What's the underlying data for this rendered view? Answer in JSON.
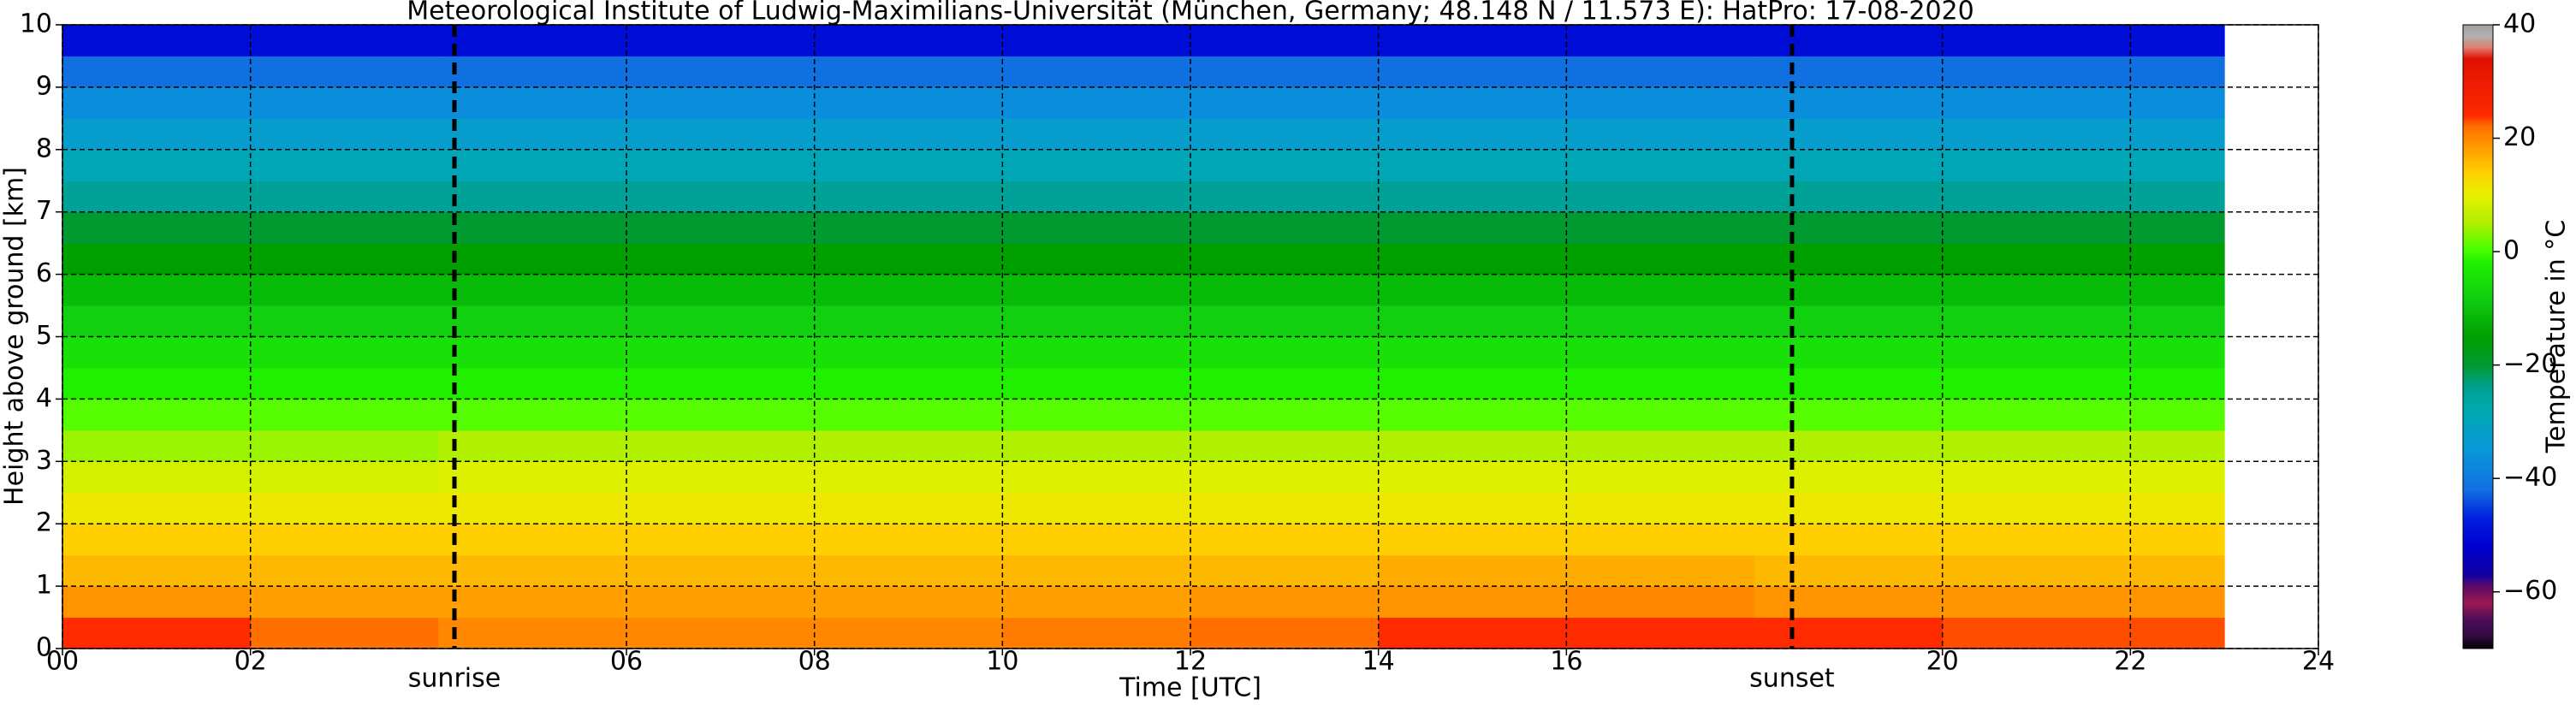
{
  "chart_data": {
    "type": "heatmap",
    "title": "Meteorological Institute of Ludwig-Maximilians-Universität (München, Germany; 48.148 N / 11.573 E):    HatPro: 17-08-2020",
    "xlabel": "Time [UTC]",
    "ylabel": "Height above ground [km]",
    "colorbar_label": "Temperature in °C",
    "xlim": [
      0,
      24
    ],
    "ylim": [
      0,
      10
    ],
    "xticks": [
      {
        "value": 0,
        "label": "00"
      },
      {
        "value": 2,
        "label": "02"
      },
      {
        "value": 6,
        "label": "06"
      },
      {
        "value": 8,
        "label": "08"
      },
      10,
      12,
      14,
      16,
      20,
      22,
      24
    ],
    "yticks": [
      0,
      1,
      2,
      3,
      4,
      5,
      6,
      7,
      8,
      9,
      10
    ],
    "grid": true,
    "events": [
      {
        "x": 4.17,
        "label": "sunrise"
      },
      {
        "x": 18.4,
        "label": "sunset"
      }
    ],
    "x_edges": [
      0,
      2,
      4,
      6,
      8,
      10,
      12,
      14,
      16,
      18,
      20,
      22,
      23
    ],
    "y_edges": [
      0,
      0.5,
      1,
      1.5,
      2,
      2.5,
      3,
      3.5,
      4,
      4.5,
      5,
      5.5,
      6,
      6.5,
      7,
      7.5,
      8,
      8.5,
      9,
      9.5,
      10
    ],
    "z": [
      [
        24,
        22,
        20,
        20,
        20,
        21,
        22,
        24,
        24,
        24,
        23,
        23
      ],
      [
        19,
        18,
        18,
        18,
        18,
        18,
        19,
        19,
        20,
        19,
        19,
        19
      ],
      [
        16,
        16,
        16,
        16,
        16,
        16,
        16,
        17,
        17,
        16,
        16,
        16
      ],
      [
        14,
        14,
        14,
        14,
        14,
        14,
        14,
        14,
        14,
        14,
        14,
        14
      ],
      [
        11,
        11,
        11,
        11,
        11,
        11,
        11,
        11,
        11,
        11,
        11,
        11
      ],
      [
        8,
        8,
        9,
        9,
        9,
        9,
        9,
        9,
        9,
        9,
        9,
        9
      ],
      [
        4,
        4,
        5,
        5,
        5,
        5,
        5,
        5,
        5,
        5,
        5,
        5
      ],
      [
        1,
        1,
        1,
        1,
        1,
        1,
        1,
        1,
        1,
        1,
        1,
        1
      ],
      [
        -2,
        -2,
        -2,
        -2,
        -2,
        -2,
        -2,
        -2,
        -2,
        -2,
        -2,
        -2
      ],
      [
        -5,
        -5,
        -5,
        -5,
        -5,
        -5,
        -5,
        -5,
        -5,
        -5,
        -5,
        -5
      ],
      [
        -8,
        -8,
        -8,
        -8,
        -8,
        -8,
        -8,
        -8,
        -8,
        -8,
        -8,
        -8
      ],
      [
        -11,
        -11,
        -11,
        -11,
        -11,
        -11,
        -11,
        -11,
        -11,
        -11,
        -11,
        -11
      ],
      [
        -15,
        -15,
        -15,
        -15,
        -15,
        -15,
        -15,
        -15,
        -15,
        -15,
        -15,
        -15
      ],
      [
        -20,
        -20,
        -20,
        -20,
        -20,
        -20,
        -20,
        -20,
        -20,
        -20,
        -20,
        -20
      ],
      [
        -25,
        -25,
        -25,
        -25,
        -25,
        -25,
        -25,
        -25,
        -25,
        -25,
        -25,
        -25
      ],
      [
        -29,
        -29,
        -29,
        -29,
        -29,
        -29,
        -29,
        -29,
        -29,
        -29,
        -29,
        -29
      ],
      [
        -33,
        -33,
        -33,
        -33,
        -33,
        -33,
        -33,
        -33,
        -33,
        -33,
        -33,
        -33
      ],
      [
        -37,
        -37,
        -37,
        -37,
        -37,
        -37,
        -37,
        -37,
        -37,
        -37,
        -37,
        -37
      ],
      [
        -42,
        -42,
        -42,
        -42,
        -42,
        -42,
        -42,
        -42,
        -42,
        -42,
        -42,
        -42
      ],
      [
        -50,
        -50,
        -50,
        -50,
        -50,
        -50,
        -50,
        -50,
        -50,
        -50,
        -50,
        -50
      ]
    ],
    "zlim": [
      -70,
      40
    ],
    "zticks": [
      {
        "value": -60,
        "label": "−60"
      },
      {
        "value": -40,
        "label": "−40"
      },
      {
        "value": -20,
        "label": "−20"
      },
      0,
      20,
      40
    ],
    "colorscale": [
      [
        -70,
        "#000000"
      ],
      [
        -68,
        "#300a3c"
      ],
      [
        -65,
        "#4a0e5a"
      ],
      [
        -62,
        "#9a1a50"
      ],
      [
        -59,
        "#5a0a6a"
      ],
      [
        -57,
        "#1000a0"
      ],
      [
        -52,
        "#0000d0"
      ],
      [
        -47,
        "#0020e0"
      ],
      [
        -42,
        "#1070e0"
      ],
      [
        -35,
        "#0898d8"
      ],
      [
        -28,
        "#00a8b0"
      ],
      [
        -24,
        "#00a090"
      ],
      [
        -20,
        "#009a30"
      ],
      [
        -15,
        "#00a000"
      ],
      [
        -8,
        "#10d010"
      ],
      [
        -2,
        "#20f000"
      ],
      [
        0,
        "#40ff00"
      ],
      [
        5,
        "#b0f000"
      ],
      [
        10,
        "#e8f000"
      ],
      [
        14,
        "#ffd000"
      ],
      [
        18,
        "#ffa000"
      ],
      [
        22,
        "#ff7000"
      ],
      [
        24,
        "#ff2a00"
      ],
      [
        34,
        "#e01000"
      ],
      [
        36,
        "#e08070"
      ],
      [
        38,
        "#b0b0b0"
      ],
      [
        40,
        "#a0a0a0"
      ]
    ]
  }
}
